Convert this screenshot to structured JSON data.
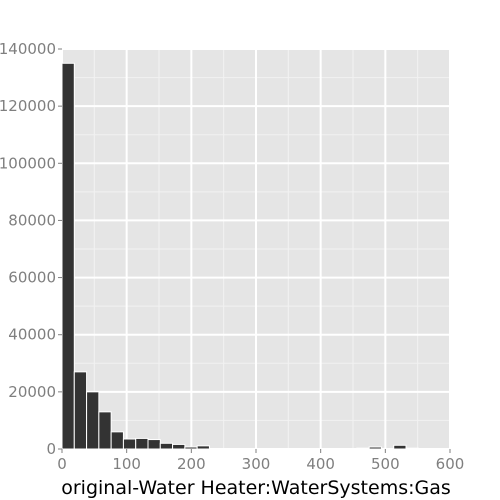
{
  "chart_data": {
    "type": "bar",
    "title": "",
    "xlabel": "original-Water Heater:WaterSystems:Gas",
    "ylabel": "",
    "xlim": [
      0,
      600
    ],
    "ylim": [
      0,
      140000
    ],
    "grid": true,
    "panel_color": "#e5e5e5",
    "bar_color": "#333333",
    "bar_edge_color": "#ffffff",
    "bin_width": 19,
    "x_ticks": [
      {
        "value": 0,
        "label": "0"
      },
      {
        "value": 100,
        "label": "100"
      },
      {
        "value": 200,
        "label": "200"
      },
      {
        "value": 300,
        "label": "300"
      },
      {
        "value": 400,
        "label": "400"
      },
      {
        "value": 500,
        "label": "500"
      },
      {
        "value": 600,
        "label": "600"
      }
    ],
    "y_ticks": [
      {
        "value": 0,
        "label": "0"
      },
      {
        "value": 20000,
        "label": "20000"
      },
      {
        "value": 40000,
        "label": "40000"
      },
      {
        "value": 60000,
        "label": "60000"
      },
      {
        "value": 80000,
        "label": "80000"
      },
      {
        "value": 100000,
        "label": "100000"
      },
      {
        "value": 120000,
        "label": "120000"
      },
      {
        "value": 140000,
        "label": "140000"
      }
    ],
    "bins": [
      {
        "x0": 0,
        "x1": 19,
        "count": 135000
      },
      {
        "x0": 19,
        "x1": 38,
        "count": 27000
      },
      {
        "x0": 38,
        "x1": 57,
        "count": 20000
      },
      {
        "x0": 57,
        "x1": 76,
        "count": 13000
      },
      {
        "x0": 76,
        "x1": 95,
        "count": 6000
      },
      {
        "x0": 95,
        "x1": 114,
        "count": 3500
      },
      {
        "x0": 114,
        "x1": 133,
        "count": 3700
      },
      {
        "x0": 133,
        "x1": 152,
        "count": 3300
      },
      {
        "x0": 152,
        "x1": 171,
        "count": 2000
      },
      {
        "x0": 171,
        "x1": 190,
        "count": 1600
      },
      {
        "x0": 190,
        "x1": 209,
        "count": 700
      },
      {
        "x0": 209,
        "x1": 228,
        "count": 1100
      },
      {
        "x0": 228,
        "x1": 247,
        "count": 0
      },
      {
        "x0": 247,
        "x1": 266,
        "count": 0
      },
      {
        "x0": 266,
        "x1": 285,
        "count": 0
      },
      {
        "x0": 285,
        "x1": 304,
        "count": 0
      },
      {
        "x0": 304,
        "x1": 323,
        "count": 0
      },
      {
        "x0": 323,
        "x1": 342,
        "count": 0
      },
      {
        "x0": 342,
        "x1": 361,
        "count": 0
      },
      {
        "x0": 361,
        "x1": 380,
        "count": 0
      },
      {
        "x0": 380,
        "x1": 399,
        "count": 0
      },
      {
        "x0": 399,
        "x1": 418,
        "count": 0
      },
      {
        "x0": 418,
        "x1": 437,
        "count": 0
      },
      {
        "x0": 437,
        "x1": 456,
        "count": 0
      },
      {
        "x0": 456,
        "x1": 475,
        "count": 300
      },
      {
        "x0": 475,
        "x1": 494,
        "count": 700
      },
      {
        "x0": 494,
        "x1": 513,
        "count": 0
      },
      {
        "x0": 513,
        "x1": 532,
        "count": 1300
      },
      {
        "x0": 532,
        "x1": 551,
        "count": 300
      }
    ]
  }
}
